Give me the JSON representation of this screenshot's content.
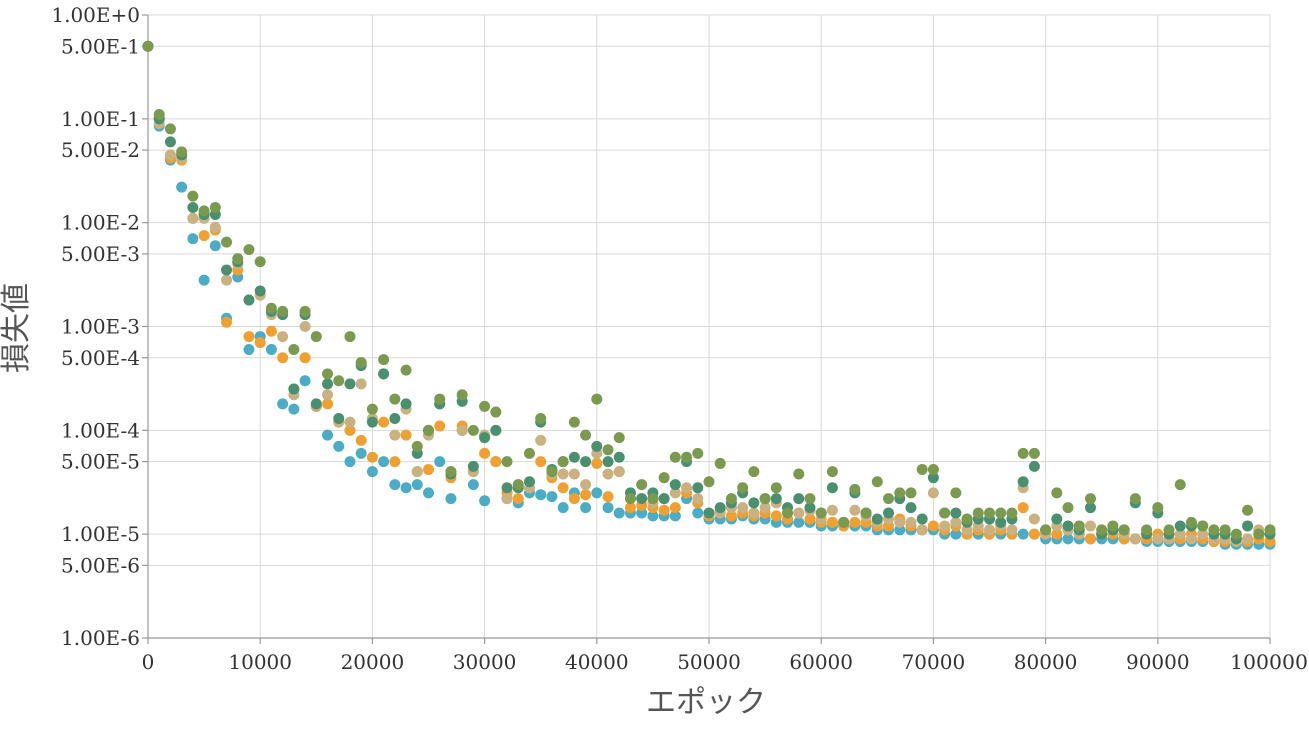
{
  "chart_data": {
    "type": "scatter",
    "title": "",
    "xlabel": "エポック",
    "ylabel": "損失値",
    "xlim": [
      0,
      100000
    ],
    "ylim": [
      1e-06,
      1
    ],
    "y_scale": "log",
    "grid": true,
    "x_ticks": [
      "0",
      "10000",
      "20000",
      "30000",
      "40000",
      "50000",
      "60000",
      "70000",
      "80000",
      "90000",
      "100000"
    ],
    "y_ticks": [
      {
        "value": 1,
        "label": "1.00E+0"
      },
      {
        "value": 0.5,
        "label": "5.00E-1"
      },
      {
        "value": 0.1,
        "label": "1.00E-1"
      },
      {
        "value": 0.05,
        "label": "5.00E-2"
      },
      {
        "value": 0.01,
        "label": "1.00E-2"
      },
      {
        "value": 0.005,
        "label": "5.00E-3"
      },
      {
        "value": 0.001,
        "label": "1.00E-3"
      },
      {
        "value": 0.0005,
        "label": "5.00E-4"
      },
      {
        "value": 0.0001,
        "label": "1.00E-4"
      },
      {
        "value": 5e-05,
        "label": "5.00E-5"
      },
      {
        "value": 1e-05,
        "label": "1.00E-5"
      },
      {
        "value": 5e-06,
        "label": "5.00E-6"
      },
      {
        "value": 1e-06,
        "label": "1.00E-6"
      }
    ],
    "series": [
      {
        "color": "#4bacc6",
        "x": [
          0,
          1000,
          2000,
          3000,
          4000,
          5000,
          6000,
          7000,
          8000,
          9000,
          10000,
          11000,
          12000,
          13000,
          14000,
          15000,
          16000,
          17000,
          18000,
          19000,
          20000,
          21000,
          22000,
          23000,
          24000,
          25000,
          26000,
          27000,
          28000,
          29000,
          30000,
          31000,
          32000,
          33000,
          34000,
          35000,
          36000,
          37000,
          38000,
          39000,
          40000,
          41000,
          42000,
          43000,
          44000,
          45000,
          46000,
          47000,
          48000,
          49000,
          50000,
          51000,
          52000,
          53000,
          54000,
          55000,
          56000,
          57000,
          58000,
          59000,
          60000,
          61000,
          62000,
          63000,
          64000,
          65000,
          66000,
          67000,
          68000,
          69000,
          70000,
          71000,
          72000,
          73000,
          74000,
          75000,
          76000,
          77000,
          78000,
          79000,
          80000,
          81000,
          82000,
          83000,
          84000,
          85000,
          86000,
          87000,
          88000,
          89000,
          90000,
          91000,
          92000,
          93000,
          94000,
          95000,
          96000,
          97000,
          98000,
          99000,
          100000
        ],
        "y": [
          0.5,
          0.085,
          0.04,
          0.022,
          0.007,
          0.0028,
          0.006,
          0.0012,
          0.003,
          0.0006,
          0.0008,
          0.0006,
          0.00018,
          0.00016,
          0.0003,
          0.00017,
          9e-05,
          7e-05,
          5e-05,
          6e-05,
          4e-05,
          5e-05,
          3e-05,
          2.8e-05,
          3e-05,
          2.5e-05,
          5e-05,
          2.2e-05,
          0.0001,
          3e-05,
          2.1e-05,
          5e-05,
          2.2e-05,
          2e-05,
          2.5e-05,
          2.4e-05,
          2.3e-05,
          1.8e-05,
          2.5e-05,
          1.8e-05,
          2.5e-05,
          1.8e-05,
          1.6e-05,
          1.6e-05,
          1.6e-05,
          1.5e-05,
          1.5e-05,
          1.5e-05,
          2.2e-05,
          1.6e-05,
          1.4e-05,
          1.4e-05,
          1.4e-05,
          1.5e-05,
          1.4e-05,
          1.4e-05,
          1.3e-05,
          1.3e-05,
          1.3e-05,
          1.3e-05,
          1.2e-05,
          1.2e-05,
          1.2e-05,
          1.2e-05,
          1.2e-05,
          1.1e-05,
          1.1e-05,
          1.1e-05,
          1.1e-05,
          1.1e-05,
          1.1e-05,
          1e-05,
          1e-05,
          1e-05,
          1e-05,
          1e-05,
          1e-05,
          1e-05,
          1e-05,
          1e-05,
          9e-06,
          9e-06,
          9e-06,
          9e-06,
          9e-06,
          9e-06,
          9e-06,
          9e-06,
          9e-06,
          8.5e-06,
          8.5e-06,
          8.5e-06,
          8.5e-06,
          8.5e-06,
          8.5e-06,
          8.5e-06,
          8e-06,
          8e-06,
          8e-06,
          8e-06,
          8e-06
        ]
      },
      {
        "color": "#f0a030",
        "x": [
          0,
          1000,
          2000,
          3000,
          4000,
          5000,
          6000,
          7000,
          8000,
          9000,
          10000,
          11000,
          12000,
          13000,
          14000,
          15000,
          16000,
          17000,
          18000,
          19000,
          20000,
          21000,
          22000,
          23000,
          24000,
          25000,
          26000,
          27000,
          28000,
          29000,
          30000,
          31000,
          32000,
          33000,
          34000,
          35000,
          36000,
          37000,
          38000,
          39000,
          40000,
          41000,
          42000,
          43000,
          44000,
          45000,
          46000,
          47000,
          48000,
          49000,
          50000,
          51000,
          52000,
          53000,
          54000,
          55000,
          56000,
          57000,
          58000,
          59000,
          60000,
          61000,
          62000,
          63000,
          64000,
          65000,
          66000,
          67000,
          68000,
          69000,
          70000,
          71000,
          72000,
          73000,
          74000,
          75000,
          76000,
          77000,
          78000,
          79000,
          80000,
          81000,
          82000,
          83000,
          84000,
          85000,
          86000,
          87000,
          88000,
          89000,
          90000,
          91000,
          92000,
          93000,
          94000,
          95000,
          96000,
          97000,
          98000,
          99000,
          100000
        ],
        "y": [
          0.5,
          0.1,
          0.042,
          0.04,
          0.011,
          0.0075,
          0.0085,
          0.0011,
          0.0035,
          0.0008,
          0.0007,
          0.0009,
          0.0005,
          0.00025,
          0.0005,
          0.00017,
          0.00018,
          0.00012,
          0.0001,
          8e-05,
          5.5e-05,
          0.00012,
          5e-05,
          9e-05,
          4e-05,
          4.2e-05,
          0.00011,
          3.5e-05,
          0.00011,
          4e-05,
          6e-05,
          5e-05,
          2.5e-05,
          2.2e-05,
          2.8e-05,
          5e-05,
          3.5e-05,
          2.8e-05,
          2.2e-05,
          2.4e-05,
          4.8e-05,
          2.3e-05,
          4e-05,
          1.8e-05,
          1.9e-05,
          1.8e-05,
          1.7e-05,
          1.8e-05,
          2.5e-05,
          2e-05,
          1.5e-05,
          1.7e-05,
          1.5e-05,
          1.6e-05,
          1.5e-05,
          1.6e-05,
          1.5e-05,
          1.4e-05,
          1.6e-05,
          1.4e-05,
          1.3e-05,
          1.3e-05,
          1.2e-05,
          1.3e-05,
          1.3e-05,
          1.2e-05,
          1.2e-05,
          1.4e-05,
          1.2e-05,
          1.1e-05,
          1.2e-05,
          1.1e-05,
          1.2e-05,
          1e-05,
          1.1e-05,
          1e-05,
          1.1e-05,
          1e-05,
          1.8e-05,
          1e-05,
          1e-05,
          1e-05,
          1.1e-05,
          1e-05,
          9e-06,
          1e-05,
          1e-05,
          9e-06,
          9e-06,
          9e-06,
          1e-05,
          9e-06,
          9e-06,
          1e-05,
          9e-06,
          8.5e-06,
          8.5e-06,
          9e-06,
          8.5e-06,
          9e-06,
          8.5e-06
        ]
      },
      {
        "color": "#c9b182",
        "x": [
          0,
          1000,
          2000,
          3000,
          4000,
          5000,
          6000,
          7000,
          8000,
          9000,
          10000,
          11000,
          12000,
          13000,
          14000,
          15000,
          16000,
          17000,
          18000,
          19000,
          20000,
          21000,
          22000,
          23000,
          24000,
          25000,
          26000,
          27000,
          28000,
          29000,
          30000,
          31000,
          32000,
          33000,
          34000,
          35000,
          36000,
          37000,
          38000,
          39000,
          40000,
          41000,
          42000,
          43000,
          44000,
          45000,
          46000,
          47000,
          48000,
          49000,
          50000,
          51000,
          52000,
          53000,
          54000,
          55000,
          56000,
          57000,
          58000,
          59000,
          60000,
          61000,
          62000,
          63000,
          64000,
          65000,
          66000,
          67000,
          68000,
          69000,
          70000,
          71000,
          72000,
          73000,
          74000,
          75000,
          76000,
          77000,
          78000,
          79000,
          80000,
          81000,
          82000,
          83000,
          84000,
          85000,
          86000,
          87000,
          88000,
          89000,
          90000,
          91000,
          92000,
          93000,
          94000,
          95000,
          96000,
          97000,
          98000,
          99000,
          100000
        ],
        "y": [
          0.5,
          0.09,
          0.045,
          0.042,
          0.011,
          0.011,
          0.009,
          0.0028,
          0.004,
          0.0018,
          0.002,
          0.0013,
          0.0008,
          0.00022,
          0.001,
          0.00017,
          0.00022,
          0.00012,
          0.00012,
          0.00028,
          0.00013,
          0.00035,
          9e-05,
          0.00016,
          4e-05,
          9e-05,
          0.00018,
          4e-05,
          0.0001,
          4e-05,
          9e-05,
          0.0001,
          2.2e-05,
          3e-05,
          2.8e-05,
          8e-05,
          3.8e-05,
          3.8e-05,
          3.8e-05,
          3e-05,
          6e-05,
          3.8e-05,
          4e-05,
          2.2e-05,
          2.2e-05,
          2e-05,
          2.2e-05,
          2.5e-05,
          2.8e-05,
          2.2e-05,
          1.6e-05,
          1.6e-05,
          1.8e-05,
          1.8e-05,
          1.6e-05,
          1.8e-05,
          2e-05,
          1.6e-05,
          1.6e-05,
          1.7e-05,
          1.4e-05,
          1.7e-05,
          1.3e-05,
          1.7e-05,
          1.5e-05,
          1.3e-05,
          1.4e-05,
          1.3e-05,
          1.3e-05,
          1.1e-05,
          2.5e-05,
          1.2e-05,
          1.3e-05,
          1.1e-05,
          1.2e-05,
          1.1e-05,
          1.2e-05,
          1.1e-05,
          2.8e-05,
          1.4e-05,
          1e-05,
          1.2e-05,
          1.1e-05,
          1e-05,
          1.2e-05,
          1e-05,
          1.1e-05,
          1e-05,
          9e-06,
          1e-05,
          9e-06,
          9e-06,
          1e-05,
          9e-06,
          1e-05,
          9e-06,
          9e-06,
          8.5e-06,
          9e-06,
          1.1e-05,
          1e-05
        ]
      },
      {
        "color": "#4a9070",
        "x": [
          0,
          1000,
          2000,
          3000,
          4000,
          5000,
          6000,
          7000,
          8000,
          9000,
          10000,
          11000,
          12000,
          13000,
          14000,
          15000,
          16000,
          17000,
          18000,
          19000,
          20000,
          21000,
          22000,
          23000,
          24000,
          25000,
          26000,
          27000,
          28000,
          29000,
          30000,
          31000,
          32000,
          33000,
          34000,
          35000,
          36000,
          37000,
          38000,
          39000,
          40000,
          41000,
          42000,
          43000,
          44000,
          45000,
          46000,
          47000,
          48000,
          49000,
          50000,
          51000,
          52000,
          53000,
          54000,
          55000,
          56000,
          57000,
          58000,
          59000,
          60000,
          61000,
          62000,
          63000,
          64000,
          65000,
          66000,
          67000,
          68000,
          69000,
          70000,
          71000,
          72000,
          73000,
          74000,
          75000,
          76000,
          77000,
          78000,
          79000,
          80000,
          81000,
          82000,
          83000,
          84000,
          85000,
          86000,
          87000,
          88000,
          89000,
          90000,
          91000,
          92000,
          93000,
          94000,
          95000,
          96000,
          97000,
          98000,
          99000,
          100000
        ],
        "y": [
          0.5,
          0.1,
          0.06,
          0.045,
          0.014,
          0.012,
          0.012,
          0.0035,
          0.0042,
          0.0018,
          0.0022,
          0.0014,
          0.0013,
          0.00025,
          0.0013,
          0.00018,
          0.00028,
          0.00013,
          0.00028,
          0.00042,
          0.00012,
          0.00035,
          0.00013,
          0.00018,
          6e-05,
          0.0001,
          0.00018,
          3.8e-05,
          0.00019,
          4.5e-05,
          8.5e-05,
          0.0001,
          2.8e-05,
          2.8e-05,
          3.2e-05,
          0.00012,
          4.2e-05,
          5e-05,
          5.5e-05,
          5e-05,
          7e-05,
          5e-05,
          5.5e-05,
          2.5e-05,
          2.2e-05,
          2.5e-05,
          2.2e-05,
          3e-05,
          5e-05,
          2.8e-05,
          1.6e-05,
          1.8e-05,
          2e-05,
          2.5e-05,
          2e-05,
          2.2e-05,
          2.2e-05,
          1.8e-05,
          2.2e-05,
          1.8e-05,
          1.6e-05,
          2.8e-05,
          1.3e-05,
          2.5e-05,
          1.6e-05,
          1.4e-05,
          1.6e-05,
          2.2e-05,
          1.8e-05,
          1.4e-05,
          3.5e-05,
          1.6e-05,
          1.6e-05,
          1.3e-05,
          1.4e-05,
          1.4e-05,
          1.3e-05,
          1.4e-05,
          3.2e-05,
          4.5e-05,
          1.1e-05,
          1.4e-05,
          1.2e-05,
          1.1e-05,
          1.8e-05,
          1e-05,
          1.1e-05,
          1.1e-05,
          2e-05,
          1e-05,
          1.6e-05,
          1e-05,
          1.2e-05,
          1.2e-05,
          1.2e-05,
          1e-05,
          1e-05,
          9e-06,
          1.2e-05,
          1e-05,
          1e-05
        ]
      },
      {
        "color": "#7a9a50",
        "x": [
          0,
          1000,
          2000,
          3000,
          4000,
          5000,
          6000,
          7000,
          8000,
          9000,
          10000,
          11000,
          12000,
          13000,
          14000,
          15000,
          16000,
          17000,
          18000,
          19000,
          20000,
          21000,
          22000,
          23000,
          24000,
          25000,
          26000,
          27000,
          28000,
          29000,
          30000,
          31000,
          32000,
          33000,
          34000,
          35000,
          36000,
          37000,
          38000,
          39000,
          40000,
          41000,
          42000,
          43000,
          44000,
          45000,
          46000,
          47000,
          48000,
          49000,
          50000,
          51000,
          52000,
          53000,
          54000,
          55000,
          56000,
          57000,
          58000,
          59000,
          60000,
          61000,
          62000,
          63000,
          64000,
          65000,
          66000,
          67000,
          68000,
          69000,
          70000,
          71000,
          72000,
          73000,
          74000,
          75000,
          76000,
          77000,
          78000,
          79000,
          80000,
          81000,
          82000,
          83000,
          84000,
          85000,
          86000,
          87000,
          88000,
          89000,
          90000,
          91000,
          92000,
          93000,
          94000,
          95000,
          96000,
          97000,
          98000,
          99000,
          100000
        ],
        "y": [
          0.5,
          0.11,
          0.08,
          0.048,
          0.018,
          0.013,
          0.014,
          0.0065,
          0.0045,
          0.0055,
          0.0042,
          0.0015,
          0.0014,
          0.0006,
          0.0014,
          0.0008,
          0.00035,
          0.0003,
          0.0008,
          0.00045,
          0.00016,
          0.00048,
          0.0002,
          0.00038,
          7e-05,
          0.0001,
          0.0002,
          4e-05,
          0.00022,
          0.0001,
          0.00017,
          0.00015,
          5e-05,
          3e-05,
          6e-05,
          0.00013,
          4e-05,
          5e-05,
          0.00012,
          9e-05,
          0.0002,
          6.5e-05,
          8.5e-05,
          2.2e-05,
          3e-05,
          2.2e-05,
          3.5e-05,
          5.5e-05,
          5.5e-05,
          6e-05,
          3.2e-05,
          4.8e-05,
          2.2e-05,
          2.8e-05,
          4e-05,
          2.2e-05,
          2.8e-05,
          1.6e-05,
          3.8e-05,
          2.2e-05,
          1.6e-05,
          4e-05,
          1.3e-05,
          2.7e-05,
          1.6e-05,
          3.2e-05,
          2.2e-05,
          2.5e-05,
          2.5e-05,
          4.2e-05,
          4.2e-05,
          1.6e-05,
          2.5e-05,
          1.4e-05,
          1.6e-05,
          1.6e-05,
          1.6e-05,
          1.6e-05,
          6e-05,
          6e-05,
          1.1e-05,
          2.5e-05,
          1.8e-05,
          1.2e-05,
          2.2e-05,
          1.1e-05,
          1.2e-05,
          1.1e-05,
          2.2e-05,
          1.1e-05,
          1.8e-05,
          1.1e-05,
          3e-05,
          1.3e-05,
          1.2e-05,
          1.1e-05,
          1.1e-05,
          1e-05,
          1.7e-05,
          1e-05,
          1.1e-05
        ]
      }
    ]
  }
}
